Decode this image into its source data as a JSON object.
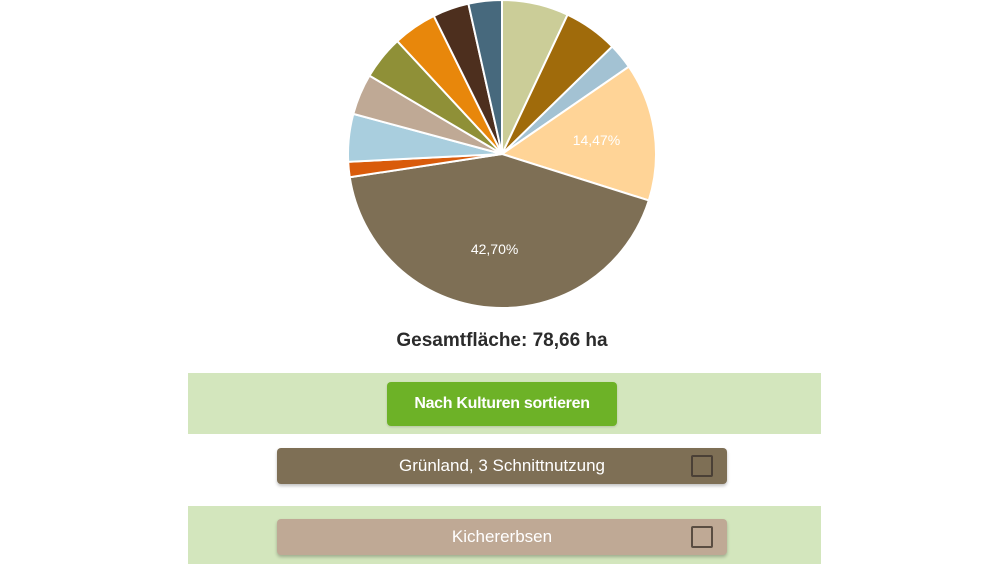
{
  "chart_data": {
    "type": "pie",
    "slices": [
      {
        "value": 7.0,
        "color": "#cbcd98",
        "label": ""
      },
      {
        "value": 5.7,
        "color": "#a06b0b",
        "label": ""
      },
      {
        "value": 2.7,
        "color": "#a3c2d3",
        "label": ""
      },
      {
        "value": 14.47,
        "color": "#ffd497",
        "label": "14,47%"
      },
      {
        "value": 42.7,
        "color": "#7e6f55",
        "label": "42,70%"
      },
      {
        "value": 1.6,
        "color": "#d95b0b",
        "label": ""
      },
      {
        "value": 5.0,
        "color": "#a9cede",
        "label": ""
      },
      {
        "value": 4.3,
        "color": "#bfa995",
        "label": ""
      },
      {
        "value": 4.6,
        "color": "#8f9037",
        "label": ""
      },
      {
        "value": 4.6,
        "color": "#e8870b",
        "label": ""
      },
      {
        "value": 3.8,
        "color": "#4d2f1e",
        "label": ""
      },
      {
        "value": 3.5,
        "color": "#47697d",
        "label": ""
      }
    ]
  },
  "summary": {
    "total_area": "Gesamtfläche: 78,66 ha"
  },
  "sort_button": {
    "label": "Nach Kulturen sortieren",
    "color": "#6db227"
  },
  "crops": [
    {
      "label": "Grünland, 3 Schnittnutzung",
      "color": "#7e6f55",
      "checked": false
    },
    {
      "label": "Kichererbsen",
      "color": "#bfa995",
      "checked": false
    }
  ],
  "band_color": "#d3e6bd"
}
